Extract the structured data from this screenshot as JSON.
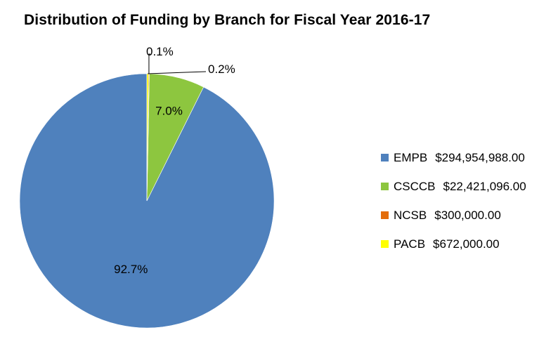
{
  "chart_data": {
    "type": "pie",
    "title": "Distribution of Funding by Branch for Fiscal Year 2016-17",
    "series": [
      {
        "name": "EMPB",
        "value_text": "$294,954,988.00",
        "value": 294954988.0,
        "percent_label": "92.7%",
        "color": "#4F81BD"
      },
      {
        "name": "CSCCB",
        "value_text": "$22,421,096.00",
        "value": 22421096.0,
        "percent_label": "7.0%",
        "color": "#8DC63F"
      },
      {
        "name": "NCSB",
        "value_text": "$300,000.00",
        "value": 300000.0,
        "percent_label": "0.1%",
        "color": "#E36C0A"
      },
      {
        "name": "PACB",
        "value_text": "$672,000.00",
        "value": 672000.0,
        "percent_label": "0.2%",
        "color": "#FFFF00"
      }
    ],
    "start_angle_deg": 0,
    "direction": "counter-clockwise",
    "legend_position": "right"
  }
}
